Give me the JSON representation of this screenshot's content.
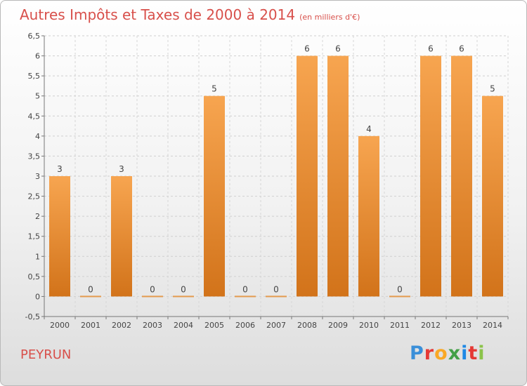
{
  "header": {
    "title": "Autres Impôts et Taxes de 2000 à 2014",
    "unit": "(en milliers d'€)"
  },
  "footer": {
    "place": "PEYRUN",
    "logo": "Proxiti",
    "logo_colors": [
      "#3a8fd9",
      "#e53935",
      "#f9a825",
      "#43a047",
      "#1e88e5",
      "#e53935",
      "#8bc34a"
    ]
  },
  "chart_data": {
    "type": "bar",
    "title": "Autres Impôts et Taxes de 2000 à 2014",
    "subtitle": "(en milliers d'€)",
    "categories": [
      "2000",
      "2001",
      "2002",
      "2003",
      "2004",
      "2005",
      "2006",
      "2007",
      "2008",
      "2009",
      "2010",
      "2011",
      "2012",
      "2013",
      "2014"
    ],
    "values": [
      3,
      0,
      3,
      0,
      0,
      5,
      0,
      0,
      6,
      6,
      4,
      0,
      6,
      6,
      5
    ],
    "data_labels": [
      "3",
      "0",
      "3",
      "0",
      "0",
      "5",
      "0",
      "0",
      "6",
      "6",
      "4",
      "0",
      "6",
      "6",
      "5"
    ],
    "ylim": [
      -0.5,
      6.5
    ],
    "yticks": [
      "-0,5",
      "0",
      "0,5",
      "1",
      "1,5",
      "2",
      "2,5",
      "3",
      "3,5",
      "4",
      "4,5",
      "5",
      "5,5",
      "6",
      "6,5"
    ],
    "ytick_values": [
      -0.5,
      0,
      0.5,
      1,
      1.5,
      2,
      2.5,
      3,
      3.5,
      4,
      4.5,
      5,
      5.5,
      6,
      6.5
    ],
    "grid": true,
    "bar_color": "#f39c3c",
    "bar_color_dark": "#d2731a"
  }
}
